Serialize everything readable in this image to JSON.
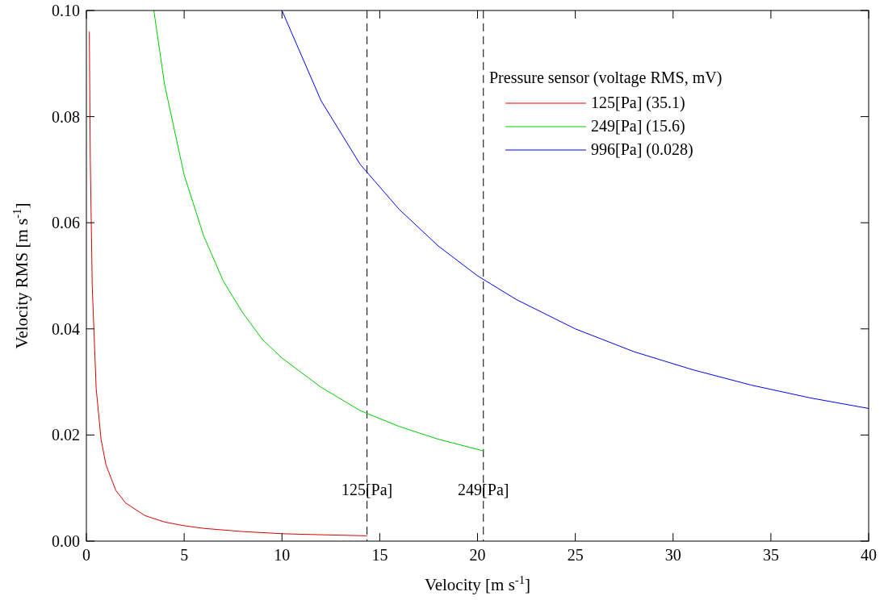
{
  "chart_data": {
    "type": "line",
    "xlabel": "Velocity [m s$^{-1}$]",
    "ylabel": "Velocity RMS [m s$^{-1}$]",
    "legend_title": "Pressure sensor (voltage RMS, mV)",
    "legend": "top right",
    "grid": false,
    "line_style": "solid",
    "marker": "none",
    "xlim": [
      0,
      40
    ],
    "xticks": [
      0,
      5,
      10,
      15,
      20,
      25,
      30,
      35,
      40
    ],
    "ylim": [
      0,
      0.1
    ],
    "yticks": [
      {
        "value": 0,
        "label": "0.00"
      },
      {
        "value": 0.02,
        "label": "0.02"
      },
      {
        "value": 0.04,
        "label": "0.04"
      },
      {
        "value": 0.06,
        "label": "0.06"
      },
      {
        "value": 0.08,
        "label": "0.08"
      },
      {
        "value": 0.1,
        "label": "0.10"
      }
    ],
    "series": [
      {
        "name": "125[Pa] (35.1)",
        "color": "#dd0000",
        "x": [
          0.15,
          0.2,
          0.3,
          0.5,
          0.75,
          1,
          1.5,
          2,
          3,
          4,
          5,
          6,
          8,
          10,
          12,
          14.35
        ],
        "values": [
          0.096,
          0.072,
          0.048,
          0.0288,
          0.0192,
          0.0144,
          0.0096,
          0.0072,
          0.0048,
          0.0036,
          0.0029,
          0.0024,
          0.0018,
          0.0014,
          0.0012,
          0.001
        ]
      },
      {
        "name": "249[Pa] (15.6)",
        "color": "#00cc00",
        "x": [
          3.45,
          4,
          5,
          6,
          7,
          8,
          9,
          10,
          12,
          14,
          16,
          18,
          20.3
        ],
        "values": [
          0.1,
          0.086,
          0.069,
          0.0575,
          0.049,
          0.043,
          0.038,
          0.0345,
          0.029,
          0.0246,
          0.0216,
          0.0192,
          0.017
        ]
      },
      {
        "name": "996[Pa] (0.028)",
        "color": "#0000ff",
        "x": [
          10,
          12,
          14,
          16,
          18,
          20,
          22,
          25,
          28,
          31,
          34,
          37,
          40
        ],
        "values": [
          0.1,
          0.083,
          0.071,
          0.0625,
          0.0556,
          0.05,
          0.0455,
          0.04,
          0.0357,
          0.0323,
          0.0294,
          0.027,
          0.025
        ]
      }
    ],
    "ref_lines": [
      {
        "axis": "x",
        "value": 14.35,
        "label": "125[Pa]",
        "line_style": "dashed",
        "color": "#000000"
      },
      {
        "axis": "x",
        "value": 20.3,
        "label": "249[Pa]",
        "line_style": "dashed",
        "color": "#000000"
      }
    ]
  }
}
